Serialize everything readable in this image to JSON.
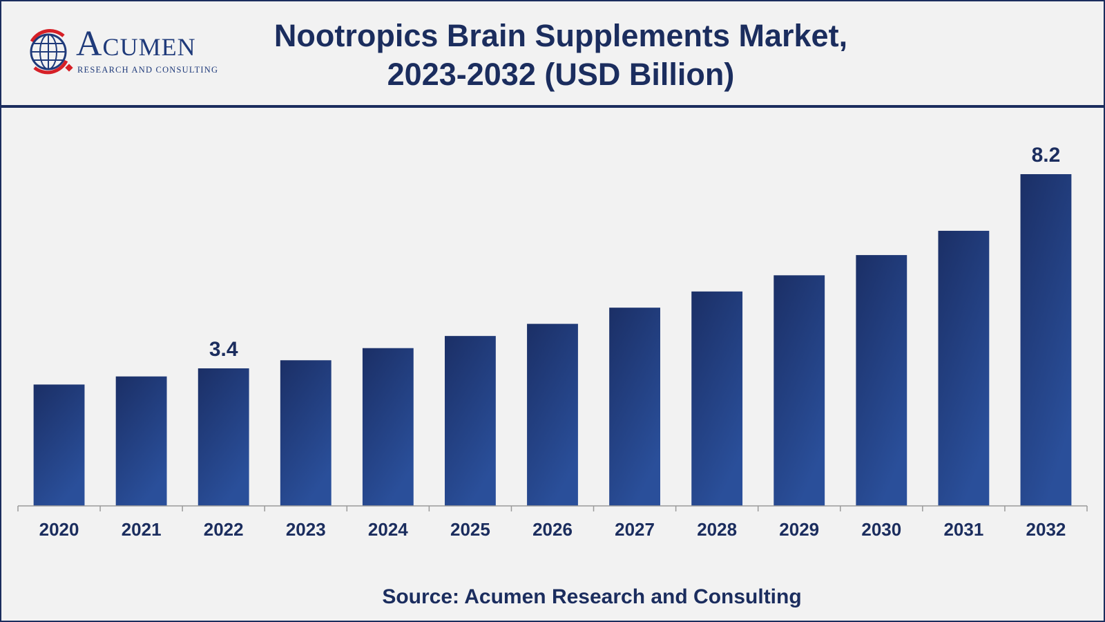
{
  "brand": {
    "name": "Acumen",
    "tagline": "RESEARCH AND CONSULTING"
  },
  "colors": {
    "navy": "#1b2d5e",
    "bar_top": "#1b2f66",
    "bar_bottom": "#2a4f9a",
    "logo_red": "#d62027"
  },
  "chart_data": {
    "type": "bar",
    "title": "Nootropics Brain Supplements Market, 2023-2032 (USD Billion)",
    "title_lines": [
      "Nootropics Brain Supplements Market,",
      "2023-2032 (USD Billion)"
    ],
    "categories": [
      "2020",
      "2021",
      "2022",
      "2023",
      "2024",
      "2025",
      "2026",
      "2027",
      "2028",
      "2029",
      "2030",
      "2031",
      "2032"
    ],
    "values": [
      3.0,
      3.2,
      3.4,
      3.6,
      3.9,
      4.2,
      4.5,
      4.9,
      5.3,
      5.7,
      6.2,
      6.8,
      8.2
    ],
    "data_labels": {
      "2022": "3.4",
      "2032": "8.2"
    },
    "xlabel": "",
    "ylabel": "",
    "ylim": [
      0,
      8.2
    ],
    "grid": false,
    "legend": "none"
  },
  "source": "Source: Acumen Research and Consulting"
}
